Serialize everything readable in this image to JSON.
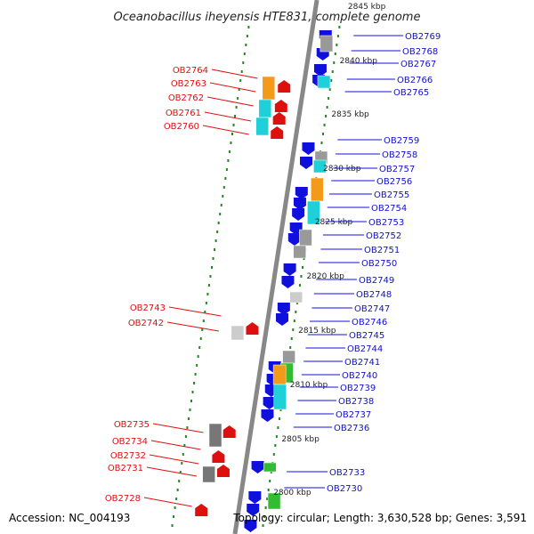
{
  "title": "Oceanobacillus iheyensis HTE831, complete genome",
  "footer": {
    "accession": "Accession: NC_004193",
    "info": "Topology: circular; Length: 3,630,528 bp; Genes: 3,591"
  },
  "colors": {
    "forward": "#dd1010",
    "reverse": "#1010dd",
    "orange": "#f39a1a",
    "cyan": "#20d0d8",
    "green": "#33bb33",
    "gray": "#999999",
    "ticks": "#228822"
  },
  "kbp_labels": [
    "2845 kbp",
    "2840 kbp",
    "2835 kbp",
    "2830 kbp",
    "2825 kbp",
    "2820 kbp",
    "2815 kbp",
    "2810 kbp",
    "2805 kbp",
    "2800 kbp"
  ],
  "genes_right": [
    "OB2769",
    "OB2768",
    "OB2767",
    "OB2766",
    "OB2765",
    "OB2759",
    "OB2758",
    "OB2757",
    "OB2756",
    "OB2755",
    "OB2754",
    "OB2753",
    "OB2752",
    "OB2751",
    "OB2750",
    "OB2749",
    "OB2748",
    "OB2747",
    "OB2746",
    "OB2745",
    "OB2744",
    "OB2741",
    "OB2740",
    "OB2739",
    "OB2738",
    "OB2737",
    "OB2736",
    "OB2733",
    "OB2730"
  ],
  "genes_left": [
    "OB2764",
    "OB2763",
    "OB2762",
    "OB2761",
    "OB2760",
    "OB2743",
    "OB2742",
    "OB2735",
    "OB2734",
    "OB2732",
    "OB2731",
    "OB2728"
  ]
}
